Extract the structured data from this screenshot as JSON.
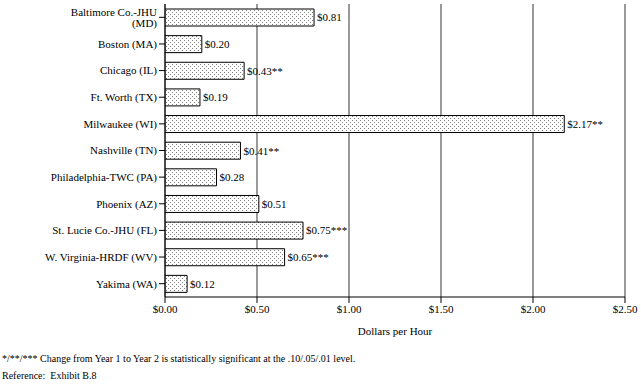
{
  "chart_data": {
    "type": "bar",
    "orientation": "horizontal",
    "categories": [
      "Baltimore Co.-JHU (MD)",
      "Boston (MA)",
      "Chicago (IL)",
      "Ft. Worth (TX)",
      "Milwaukee (WI)",
      "Nashville (TN)",
      "Philadelphia-TWC (PA)",
      "Phoenix (AZ)",
      "St. Lucie Co.-JHU (FL)",
      "W. Virginia-HRDF (WV)",
      "Yakima (WA)"
    ],
    "values": [
      0.81,
      0.2,
      0.43,
      0.19,
      2.17,
      0.41,
      0.28,
      0.51,
      0.75,
      0.65,
      0.12
    ],
    "value_labels": [
      "$0.81",
      "$0.20",
      "$0.43**",
      "$0.19",
      "$2.17**",
      "$0.41**",
      "$0.28",
      "$0.51",
      "$0.75***",
      "$0.65***",
      "$0.12"
    ],
    "color": "#808080",
    "x_label": "Dollars per Hour",
    "xlim": [
      0,
      2.5
    ],
    "xticks": [
      {
        "value": 0,
        "label": "$0.00"
      },
      {
        "value": 0.5,
        "label": "$0.50"
      },
      {
        "value": 1,
        "label": "$1.00"
      },
      {
        "value": 1.5,
        "label": "$1.50"
      },
      {
        "value": 2,
        "label": "$2.00"
      },
      {
        "value": 2.5,
        "label": "$2.50"
      }
    ],
    "grid": true,
    "data_labels": true,
    "annotations": [
      "*/**/*** Change from Year 1 to Year 2 is statistically significant at the .10/.05/.01 level.",
      "Reference:  Exhibit B.8"
    ]
  }
}
